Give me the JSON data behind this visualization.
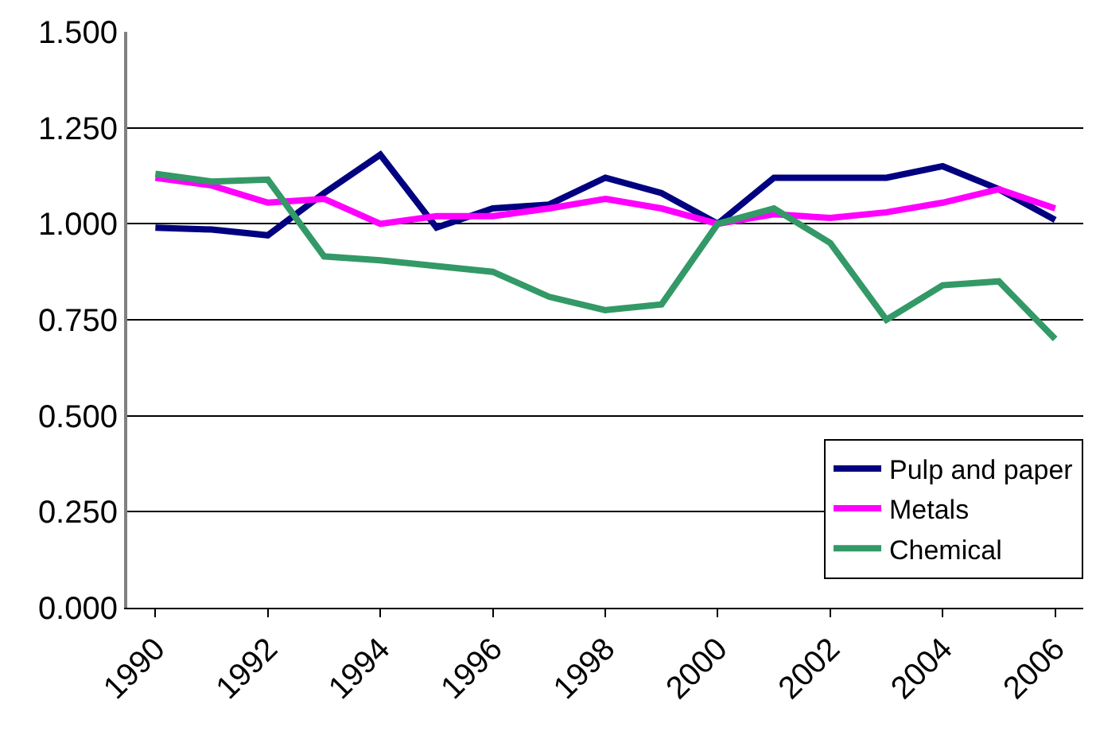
{
  "chart_data": {
    "type": "line",
    "categories": [
      "1990",
      null,
      "1992",
      null,
      "1994",
      null,
      "1996",
      null,
      "1998",
      null,
      "2000",
      null,
      "2002",
      null,
      "2004",
      null,
      "2006"
    ],
    "series": [
      {
        "name": "Pulp and paper",
        "color": "#000080",
        "values": [
          0.99,
          0.985,
          0.97,
          1.08,
          1.18,
          0.99,
          1.04,
          1.05,
          1.12,
          1.08,
          1.0,
          1.12,
          1.12,
          1.12,
          1.15,
          1.09,
          1.01
        ]
      },
      {
        "name": "Metals",
        "color": "#ff00ff",
        "values": [
          1.12,
          1.1,
          1.055,
          1.065,
          1.0,
          1.02,
          1.02,
          1.04,
          1.065,
          1.04,
          1.0,
          1.025,
          1.015,
          1.03,
          1.055,
          1.09,
          1.04
        ]
      },
      {
        "name": "Chemical",
        "color": "#339966",
        "values": [
          1.13,
          1.11,
          1.115,
          0.915,
          0.905,
          0.89,
          0.875,
          0.81,
          0.775,
          0.79,
          1.0,
          1.04,
          0.95,
          0.75,
          0.84,
          0.85,
          0.7
        ]
      }
    ],
    "ylim": [
      0,
      1.5
    ],
    "yticks": [
      {
        "value": 0,
        "label": "0.000"
      },
      {
        "value": 0.25,
        "label": "0.250"
      },
      {
        "value": 0.5,
        "label": "0.500"
      },
      {
        "value": 0.75,
        "label": "0.750"
      },
      {
        "value": 1,
        "label": "1.000"
      },
      {
        "value": 1.25,
        "label": "1.250"
      },
      {
        "value": 1.5,
        "label": "1.500"
      }
    ],
    "grid": "y",
    "legend": "bottom right",
    "marker": "none",
    "line_style": "solid"
  }
}
